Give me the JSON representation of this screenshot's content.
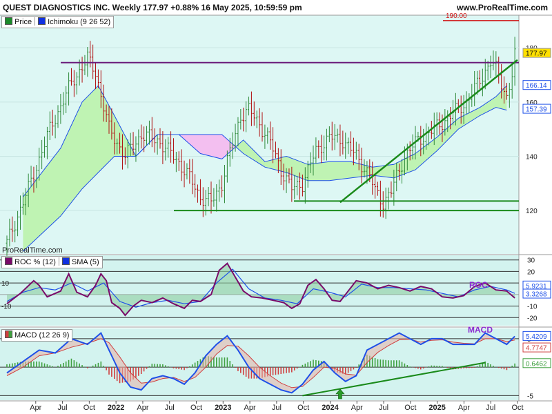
{
  "header": {
    "title": "QUEST DIAGNOSTICS INC. Weekly 177.97 +0.88% 16 May 2025, 10:59:59 pm",
    "site": "www.ProRealTime.com"
  },
  "watermark": "ProRealTime.com",
  "legends": {
    "price": {
      "label": "Price",
      "color": "#1a8a2a"
    },
    "ichimoku": {
      "label": "Ichimoku (9 26 52)",
      "color": "#1030e0"
    },
    "roc": {
      "label": "ROC % (12)",
      "color": "#7a0a6a"
    },
    "sma": {
      "label": "SMA (5)",
      "color": "#1030e0"
    },
    "macd": {
      "label": "MACD (12 26 9)",
      "color": "#d04040"
    }
  },
  "side_labels": {
    "roc": "ROC",
    "macd": "MACD"
  },
  "colors": {
    "price_bg": "#ddf7f4",
    "ind_bg": "#d3f3ef",
    "bar_up": "#2f8a3a",
    "bar_down": "#b01010",
    "cloud_bull": "#bff3b3",
    "cloud_bear": "#f3bff0",
    "ichimoku_line": "#1e50e8",
    "resistance": "#6a1b7a",
    "support": "#1a8a1a",
    "target": "#d01010"
  },
  "chart_data": [
    {
      "type": "line",
      "panel": "price",
      "subtype": "ohlc_weekly_with_ichimoku_cloud",
      "y_ticks": [
        120,
        140,
        160,
        180
      ],
      "ylim": [
        104,
        192
      ],
      "x_ticks": [
        "Apr",
        "Jul",
        "Oct",
        "2022",
        "Apr",
        "Jul",
        "Oct",
        "2023",
        "Apr",
        "Jul",
        "Oct",
        "2024",
        "Apr",
        "Jul",
        "Oct",
        "2025",
        "Apr",
        "Jul",
        "Oct"
      ],
      "x_ticks_bold": [
        "2022",
        "2023",
        "2024",
        "2025"
      ],
      "price_path": [
        [
          0,
          108
        ],
        [
          8,
          128
        ],
        [
          16,
          150
        ],
        [
          24,
          167
        ],
        [
          30,
          176
        ],
        [
          33,
          171
        ],
        [
          38,
          150
        ],
        [
          44,
          140
        ],
        [
          50,
          148
        ],
        [
          56,
          146
        ],
        [
          63,
          139
        ],
        [
          68,
          132
        ],
        [
          72,
          125
        ],
        [
          76,
          123
        ],
        [
          80,
          130
        ],
        [
          82,
          138
        ],
        [
          87,
          155
        ],
        [
          90,
          157
        ],
        [
          94,
          152
        ],
        [
          98,
          145
        ],
        [
          102,
          135
        ],
        [
          106,
          128
        ],
        [
          110,
          130
        ],
        [
          115,
          142
        ],
        [
          120,
          147
        ],
        [
          125,
          146
        ],
        [
          130,
          140
        ],
        [
          135,
          133
        ],
        [
          137,
          127
        ],
        [
          140,
          123
        ],
        [
          143,
          127
        ],
        [
          148,
          140
        ],
        [
          153,
          146
        ],
        [
          159,
          150
        ],
        [
          165,
          155
        ],
        [
          171,
          160
        ],
        [
          176,
          168
        ],
        [
          180,
          175
        ],
        [
          182,
          172
        ],
        [
          186,
          162
        ],
        [
          188,
          170
        ],
        [
          189,
          177
        ]
      ],
      "cloud_a": [
        [
          6,
          125
        ],
        [
          20,
          143
        ],
        [
          28,
          160
        ],
        [
          34,
          166
        ],
        [
          40,
          155
        ],
        [
          48,
          140
        ],
        [
          56,
          148
        ],
        [
          64,
          148
        ],
        [
          72,
          141
        ],
        [
          80,
          139
        ],
        [
          88,
          146
        ],
        [
          96,
          138
        ],
        [
          104,
          140
        ],
        [
          112,
          137
        ],
        [
          120,
          138
        ],
        [
          128,
          138
        ],
        [
          136,
          136
        ],
        [
          144,
          137
        ],
        [
          152,
          141
        ],
        [
          160,
          147
        ],
        [
          168,
          154
        ],
        [
          176,
          158
        ],
        [
          182,
          162
        ],
        [
          186,
          166
        ]
      ],
      "cloud_b": [
        [
          6,
          105
        ],
        [
          20,
          118
        ],
        [
          28,
          128
        ],
        [
          34,
          134
        ],
        [
          40,
          140
        ],
        [
          48,
          140
        ],
        [
          56,
          148
        ],
        [
          64,
          148
        ],
        [
          72,
          148
        ],
        [
          80,
          148
        ],
        [
          88,
          141
        ],
        [
          96,
          136
        ],
        [
          104,
          134
        ],
        [
          112,
          131
        ],
        [
          120,
          131
        ],
        [
          128,
          132
        ],
        [
          136,
          133
        ],
        [
          144,
          132
        ],
        [
          152,
          135
        ],
        [
          160,
          142
        ],
        [
          168,
          150
        ],
        [
          176,
          155
        ],
        [
          182,
          158
        ],
        [
          186,
          157
        ]
      ],
      "values_tags": [
        177.97,
        166.14,
        157.39
      ],
      "target": {
        "value": 190.0,
        "label": "190.00"
      },
      "resistance": {
        "value": 174.5
      },
      "supports": [
        123.5,
        120.0
      ],
      "trend": {
        "x": [
          124,
          190
        ],
        "y": [
          123,
          175.5
        ]
      }
    },
    {
      "type": "line",
      "panel": "roc",
      "series_names": [
        "ROC % (12)",
        "SMA (5)"
      ],
      "y_ticks": [
        30,
        20,
        10,
        0,
        -10,
        -20
      ],
      "tick_labels": [
        "30",
        "20",
        "10",
        "-10",
        "-20"
      ],
      "ylim": [
        -27,
        34
      ],
      "side_tick_labels": [
        "10",
        "-10"
      ],
      "roc": [
        [
          0,
          -8
        ],
        [
          5,
          1
        ],
        [
          10,
          12
        ],
        [
          12,
          8
        ],
        [
          15,
          -2
        ],
        [
          20,
          3
        ],
        [
          23,
          18
        ],
        [
          26,
          2
        ],
        [
          30,
          -2
        ],
        [
          33,
          8
        ],
        [
          35,
          18
        ],
        [
          37,
          12
        ],
        [
          39,
          -7
        ],
        [
          42,
          -12
        ],
        [
          44,
          -18
        ],
        [
          47,
          -10
        ],
        [
          50,
          -5
        ],
        [
          54,
          -7
        ],
        [
          58,
          -3
        ],
        [
          62,
          -8
        ],
        [
          66,
          -12
        ],
        [
          69,
          -5
        ],
        [
          72,
          -6
        ],
        [
          76,
          0
        ],
        [
          79,
          21
        ],
        [
          82,
          27
        ],
        [
          85,
          15
        ],
        [
          88,
          3
        ],
        [
          91,
          -2
        ],
        [
          95,
          -3
        ],
        [
          99,
          -5
        ],
        [
          103,
          -7
        ],
        [
          106,
          -12
        ],
        [
          109,
          -8
        ],
        [
          112,
          8
        ],
        [
          115,
          13
        ],
        [
          118,
          5
        ],
        [
          121,
          -5
        ],
        [
          124,
          -6
        ],
        [
          127,
          3
        ],
        [
          130,
          12
        ],
        [
          134,
          10
        ],
        [
          138,
          5
        ],
        [
          142,
          8
        ],
        [
          146,
          6
        ],
        [
          150,
          3
        ],
        [
          154,
          7
        ],
        [
          158,
          5
        ],
        [
          162,
          -2
        ],
        [
          166,
          -3
        ],
        [
          170,
          -1
        ],
        [
          174,
          7
        ],
        [
          178,
          10
        ],
        [
          182,
          4
        ],
        [
          186,
          3
        ],
        [
          189,
          -3
        ]
      ],
      "sma": [
        [
          0,
          -6
        ],
        [
          6,
          2
        ],
        [
          12,
          6
        ],
        [
          18,
          4
        ],
        [
          24,
          10
        ],
        [
          30,
          3
        ],
        [
          36,
          10
        ],
        [
          42,
          -6
        ],
        [
          48,
          -11
        ],
        [
          54,
          -7
        ],
        [
          60,
          -5
        ],
        [
          66,
          -8
        ],
        [
          72,
          -6
        ],
        [
          78,
          10
        ],
        [
          84,
          22
        ],
        [
          90,
          5
        ],
        [
          96,
          -3
        ],
        [
          102,
          -5
        ],
        [
          108,
          -8
        ],
        [
          114,
          5
        ],
        [
          120,
          2
        ],
        [
          126,
          -2
        ],
        [
          132,
          9
        ],
        [
          138,
          6
        ],
        [
          144,
          6
        ],
        [
          150,
          5
        ],
        [
          156,
          4
        ],
        [
          162,
          1
        ],
        [
          168,
          -2
        ],
        [
          174,
          4
        ],
        [
          180,
          7
        ],
        [
          186,
          4
        ],
        [
          189,
          1
        ]
      ],
      "value_tags": [
        5.9231,
        3.3268
      ]
    },
    {
      "type": "line",
      "panel": "macd",
      "series_names": [
        "MACD (12 26 9)"
      ],
      "y_ticks": [
        5,
        0,
        -5
      ],
      "tick_labels": [
        "5",
        "-5"
      ],
      "ylim": [
        -5.8,
        6.8
      ],
      "macd": [
        [
          0,
          -1
        ],
        [
          6,
          1
        ],
        [
          12,
          3
        ],
        [
          18,
          2.5
        ],
        [
          24,
          5
        ],
        [
          30,
          4
        ],
        [
          35,
          6
        ],
        [
          38,
          3
        ],
        [
          42,
          -1
        ],
        [
          46,
          -3.5
        ],
        [
          50,
          -4
        ],
        [
          54,
          -2
        ],
        [
          58,
          -1.5
        ],
        [
          62,
          -2
        ],
        [
          66,
          -3
        ],
        [
          70,
          -1
        ],
        [
          74,
          2
        ],
        [
          78,
          4
        ],
        [
          82,
          5.5
        ],
        [
          86,
          3
        ],
        [
          90,
          0
        ],
        [
          94,
          -2
        ],
        [
          98,
          -3
        ],
        [
          102,
          -4
        ],
        [
          106,
          -4.5
        ],
        [
          110,
          -3
        ],
        [
          114,
          -0.5
        ],
        [
          118,
          1
        ],
        [
          122,
          -1
        ],
        [
          126,
          -2.5
        ],
        [
          130,
          -1.5
        ],
        [
          134,
          3
        ],
        [
          138,
          4
        ],
        [
          142,
          5
        ],
        [
          146,
          6
        ],
        [
          150,
          5
        ],
        [
          154,
          4
        ],
        [
          158,
          5
        ],
        [
          162,
          5
        ],
        [
          166,
          4
        ],
        [
          170,
          4
        ],
        [
          174,
          4
        ],
        [
          178,
          6
        ],
        [
          182,
          5
        ],
        [
          186,
          4
        ],
        [
          189,
          5.4209
        ]
      ],
      "signal": [
        [
          0,
          -1.5
        ],
        [
          6,
          0
        ],
        [
          12,
          2
        ],
        [
          18,
          2.5
        ],
        [
          24,
          3.5
        ],
        [
          30,
          4.2
        ],
        [
          35,
          5
        ],
        [
          38,
          4.3
        ],
        [
          42,
          1.8
        ],
        [
          46,
          -1
        ],
        [
          50,
          -2.8
        ],
        [
          54,
          -2.6
        ],
        [
          58,
          -2
        ],
        [
          62,
          -1.8
        ],
        [
          66,
          -2.5
        ],
        [
          70,
          -1.8
        ],
        [
          74,
          0
        ],
        [
          78,
          2.3
        ],
        [
          82,
          3.8
        ],
        [
          86,
          3.7
        ],
        [
          90,
          2
        ],
        [
          94,
          0
        ],
        [
          98,
          -1.5
        ],
        [
          102,
          -2.8
        ],
        [
          106,
          -3.6
        ],
        [
          110,
          -3.4
        ],
        [
          114,
          -1.8
        ],
        [
          118,
          0
        ],
        [
          122,
          -0.2
        ],
        [
          126,
          -1.2
        ],
        [
          130,
          -1.4
        ],
        [
          134,
          0.8
        ],
        [
          138,
          2.6
        ],
        [
          142,
          3.8
        ],
        [
          146,
          4.8
        ],
        [
          150,
          4.9
        ],
        [
          154,
          4.4
        ],
        [
          158,
          4.7
        ],
        [
          162,
          4.8
        ],
        [
          166,
          4.4
        ],
        [
          170,
          4.2
        ],
        [
          174,
          4.1
        ],
        [
          178,
          5
        ],
        [
          182,
          5
        ],
        [
          186,
          4.5
        ],
        [
          189,
          4.7747
        ]
      ],
      "histogram_tag": 0.6462,
      "value_tags": [
        5.4209,
        4.7747,
        0.6462
      ],
      "trend": {
        "x": [
          110,
          178
        ],
        "y": [
          -5,
          0.8
        ]
      }
    }
  ]
}
